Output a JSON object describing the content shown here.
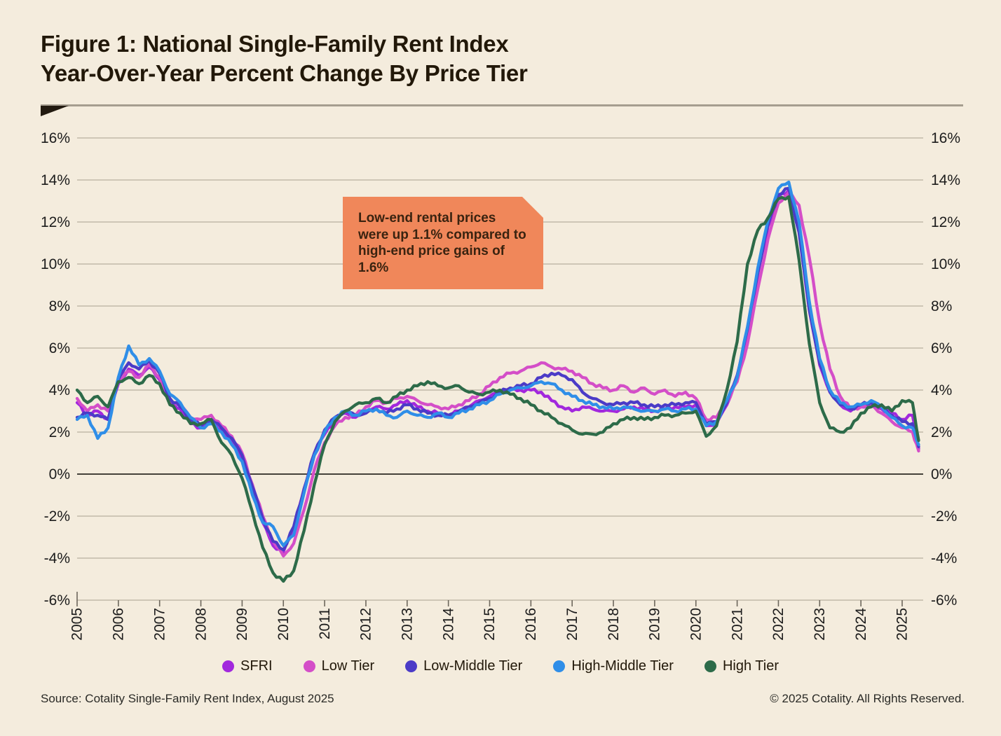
{
  "page": {
    "background": "#f4ecdd"
  },
  "header": {
    "title_line1": "Figure 1: National Single-Family Rent Index",
    "title_line2": "Year-Over-Year Percent Change By Price Tier"
  },
  "callout": {
    "text": "Low-end rental prices were up 1.1% compared to high-end price gains of 1.6%",
    "background": "#f0875a"
  },
  "footer": {
    "source": "Source: Cotality Single-Family Rent Index, August 2025",
    "copyright": "© 2025 Cotality. All Rights Reserved."
  },
  "colors": {
    "background": "#f4ecdd",
    "gridline": "#b8ae9e",
    "zero_line": "#45413a",
    "tick": "#6d675c",
    "text": "#1c1c1c",
    "callout_bg": "#f0875a"
  },
  "chart_data": {
    "type": "line",
    "title": "National Single-Family Rent Index Year-Over-Year Percent Change By Price Tier",
    "xlabel": "",
    "ylabel": "Year-over-year percent change",
    "ylim": [
      -6,
      16
    ],
    "xlim": [
      2005,
      2025.5
    ],
    "grid": true,
    "legend_position": "bottom",
    "y_ticks": [
      16,
      14,
      12,
      10,
      8,
      6,
      4,
      2,
      0,
      -2,
      -4,
      -6
    ],
    "x_ticks": [
      2005,
      2006,
      2007,
      2008,
      2009,
      2010,
      2011,
      2012,
      2013,
      2014,
      2015,
      2016,
      2017,
      2018,
      2019,
      2020,
      2021,
      2022,
      2023,
      2024,
      2025
    ],
    "x": [
      2005,
      2005.25,
      2005.5,
      2005.75,
      2006,
      2006.25,
      2006.5,
      2006.75,
      2007,
      2007.25,
      2007.5,
      2007.75,
      2008,
      2008.25,
      2008.5,
      2008.75,
      2009,
      2009.25,
      2009.5,
      2009.75,
      2010,
      2010.25,
      2010.5,
      2010.75,
      2011,
      2011.25,
      2011.5,
      2011.75,
      2012,
      2012.25,
      2012.5,
      2012.75,
      2013,
      2013.25,
      2013.5,
      2013.75,
      2014,
      2014.25,
      2014.5,
      2014.75,
      2015,
      2015.25,
      2015.5,
      2015.75,
      2016,
      2016.25,
      2016.5,
      2016.75,
      2017,
      2017.25,
      2017.5,
      2017.75,
      2018,
      2018.25,
      2018.5,
      2018.75,
      2019,
      2019.25,
      2019.5,
      2019.75,
      2020,
      2020.25,
      2020.5,
      2020.75,
      2021,
      2021.25,
      2021.5,
      2021.75,
      2022,
      2022.25,
      2022.5,
      2022.75,
      2023,
      2023.25,
      2023.5,
      2023.75,
      2024,
      2024.25,
      2024.5,
      2024.75,
      2025,
      2025.25,
      2025.4
    ],
    "series": [
      {
        "name": "SFRI",
        "color": "#a228dd",
        "values": [
          3.4,
          2.8,
          3.0,
          2.6,
          4.3,
          5.0,
          4.7,
          5.1,
          4.5,
          3.4,
          3.1,
          2.4,
          2.2,
          2.5,
          2.1,
          1.5,
          0.7,
          -0.8,
          -2.3,
          -3.4,
          -3.7,
          -2.6,
          -0.8,
          0.9,
          1.9,
          2.6,
          2.9,
          2.7,
          3.0,
          3.2,
          3.1,
          3.3,
          3.5,
          3.2,
          3.0,
          2.9,
          2.8,
          3.0,
          3.2,
          3.5,
          3.7,
          3.9,
          4.0,
          4.0,
          4.0,
          3.9,
          3.5,
          3.2,
          3.0,
          3.2,
          3.1,
          3.0,
          3.0,
          3.1,
          3.2,
          3.1,
          3.0,
          3.1,
          3.2,
          3.2,
          3.3,
          2.3,
          2.4,
          3.3,
          4.6,
          6.8,
          9.5,
          11.8,
          13.2,
          13.5,
          11.6,
          7.8,
          5.2,
          3.9,
          3.3,
          3.0,
          3.2,
          3.4,
          3.1,
          2.9,
          2.6,
          2.8,
          1.2
        ]
      },
      {
        "name": "Low Tier",
        "color": "#d44ec8",
        "values": [
          3.6,
          3.0,
          3.3,
          3.0,
          4.4,
          4.9,
          4.6,
          5.2,
          4.6,
          3.5,
          3.3,
          2.7,
          2.6,
          2.8,
          2.3,
          1.8,
          1.0,
          -0.5,
          -2.0,
          -3.2,
          -3.9,
          -3.3,
          -1.7,
          0.2,
          1.5,
          2.3,
          2.7,
          2.8,
          3.2,
          3.5,
          3.4,
          3.6,
          3.7,
          3.5,
          3.3,
          3.2,
          3.1,
          3.3,
          3.5,
          3.8,
          4.2,
          4.6,
          4.8,
          4.9,
          5.1,
          5.3,
          5.1,
          5.0,
          4.9,
          4.6,
          4.3,
          4.1,
          4.0,
          4.2,
          3.9,
          4.1,
          3.8,
          4.0,
          3.7,
          3.9,
          3.6,
          2.6,
          2.7,
          3.4,
          4.4,
          6.2,
          8.8,
          11.2,
          12.9,
          13.4,
          12.8,
          10.3,
          7.2,
          5.0,
          3.7,
          3.1,
          3.2,
          3.3,
          2.9,
          2.5,
          2.2,
          2.0,
          1.1
        ]
      },
      {
        "name": "Low-Middle Tier",
        "color": "#4b3bc7",
        "values": [
          2.7,
          2.9,
          2.8,
          2.6,
          4.5,
          5.3,
          5.0,
          5.4,
          4.8,
          3.6,
          3.2,
          2.6,
          2.3,
          2.6,
          2.2,
          1.7,
          0.9,
          -0.6,
          -2.1,
          -3.2,
          -3.6,
          -2.5,
          -0.7,
          1.0,
          2.1,
          2.7,
          3.0,
          2.8,
          2.9,
          3.1,
          2.9,
          3.1,
          3.3,
          3.1,
          2.9,
          2.8,
          2.8,
          3.0,
          3.2,
          3.4,
          3.6,
          3.9,
          4.1,
          4.2,
          4.3,
          4.6,
          4.8,
          4.7,
          4.5,
          3.9,
          3.6,
          3.4,
          3.3,
          3.4,
          3.4,
          3.3,
          3.2,
          3.3,
          3.3,
          3.4,
          3.4,
          2.4,
          2.5,
          3.4,
          4.7,
          6.9,
          9.6,
          11.9,
          13.3,
          13.6,
          11.5,
          7.8,
          5.3,
          3.9,
          3.3,
          3.1,
          3.3,
          3.4,
          3.2,
          2.8,
          2.5,
          2.4,
          1.3
        ]
      },
      {
        "name": "High-Middle Tier",
        "color": "#2f8ee8",
        "values": [
          2.6,
          2.8,
          1.7,
          2.2,
          4.6,
          6.1,
          5.2,
          5.5,
          4.9,
          3.8,
          3.4,
          2.7,
          2.2,
          2.4,
          2.0,
          1.4,
          0.6,
          -1.0,
          -2.3,
          -2.5,
          -3.4,
          -2.9,
          -0.9,
          0.9,
          2.0,
          2.7,
          3.0,
          2.8,
          3.0,
          3.1,
          2.8,
          2.7,
          3.0,
          2.8,
          2.7,
          2.9,
          2.7,
          2.9,
          3.1,
          3.3,
          3.5,
          3.8,
          4.0,
          4.1,
          4.2,
          4.4,
          4.3,
          4.0,
          3.7,
          3.5,
          3.3,
          3.2,
          3.1,
          3.2,
          3.1,
          3.0,
          3.0,
          3.1,
          3.0,
          3.1,
          3.1,
          2.3,
          2.5,
          3.5,
          4.6,
          7.0,
          9.8,
          12.1,
          13.6,
          13.9,
          12.0,
          8.2,
          5.5,
          4.0,
          3.4,
          3.2,
          3.3,
          3.5,
          3.2,
          2.7,
          2.3,
          2.2,
          1.4
        ]
      },
      {
        "name": "High Tier",
        "color": "#2d6b49",
        "values": [
          4.0,
          3.4,
          3.7,
          3.2,
          4.4,
          4.6,
          4.3,
          4.7,
          4.3,
          3.3,
          2.9,
          2.4,
          2.4,
          2.6,
          1.5,
          0.9,
          -0.2,
          -1.8,
          -3.5,
          -4.7,
          -5.1,
          -4.6,
          -2.7,
          -0.5,
          1.4,
          2.5,
          3.0,
          3.3,
          3.4,
          3.6,
          3.4,
          3.7,
          4.0,
          4.2,
          4.4,
          4.2,
          4.1,
          4.2,
          3.9,
          3.8,
          3.9,
          4.0,
          3.8,
          3.6,
          3.3,
          3.0,
          2.7,
          2.4,
          2.1,
          1.9,
          1.9,
          2.0,
          2.4,
          2.6,
          2.7,
          2.6,
          2.7,
          2.8,
          2.8,
          2.9,
          3.0,
          1.8,
          2.3,
          4.0,
          6.3,
          10.0,
          11.6,
          12.2,
          13.1,
          13.2,
          10.2,
          6.2,
          3.4,
          2.2,
          2.0,
          2.2,
          2.9,
          3.2,
          3.3,
          3.0,
          3.5,
          3.4,
          1.6
        ]
      }
    ]
  }
}
